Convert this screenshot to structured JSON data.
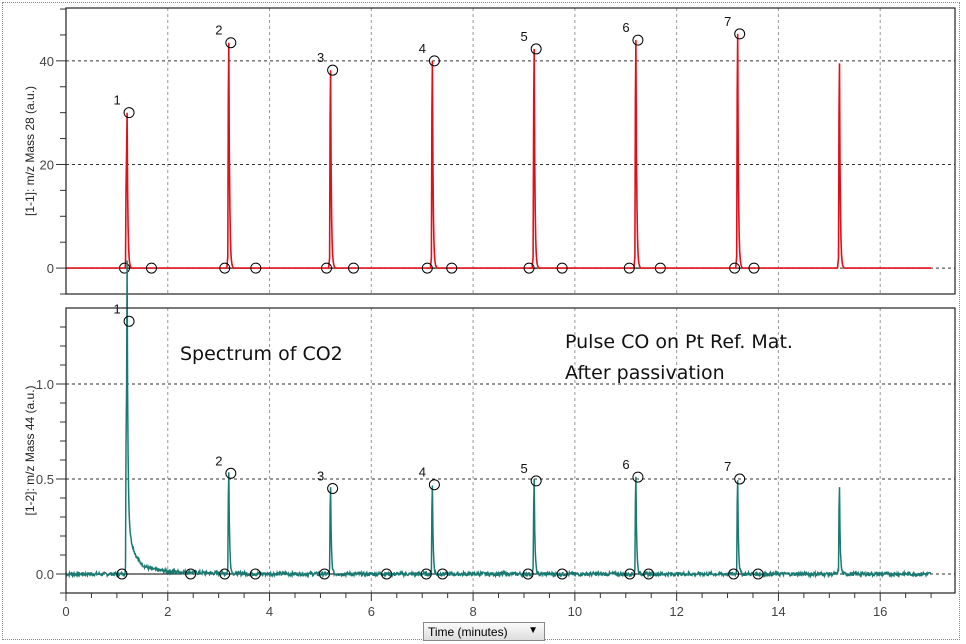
{
  "chart_data": [
    {
      "type": "line",
      "title": "",
      "xlabel": "Time (minutes)",
      "ylabel": "[1-1]: m/z Mass 28 (a.u.)",
      "xlim": [
        0,
        17.47
      ],
      "ylim": [
        -5,
        50.2
      ],
      "xticks": [
        0,
        2,
        4,
        6,
        8,
        10,
        12,
        14,
        16
      ],
      "yticks": [
        0,
        20,
        40
      ],
      "grid": true,
      "color": "#e0101a",
      "peaks": [
        {
          "label": "1",
          "time": 1.2,
          "value": 30.0
        },
        {
          "label": "2",
          "time": 3.2,
          "value": 43.5
        },
        {
          "label": "3",
          "time": 5.2,
          "value": 38.2
        },
        {
          "label": "4",
          "time": 7.2,
          "value": 40.0
        },
        {
          "label": "5",
          "time": 9.2,
          "value": 42.3
        },
        {
          "label": "6",
          "time": 11.2,
          "value": 44.0
        },
        {
          "label": "7",
          "time": 13.2,
          "value": 45.2
        },
        {
          "label": "",
          "time": 15.2,
          "value": 39.5
        }
      ],
      "baseline_markers": [
        [
          1.15,
          1.68
        ],
        [
          3.12,
          3.73
        ],
        [
          5.12,
          5.65
        ],
        [
          7.1,
          7.58
        ],
        [
          9.1,
          9.75
        ],
        [
          11.07,
          11.68
        ],
        [
          13.14,
          13.52
        ]
      ],
      "x_end": 17.0
    },
    {
      "type": "line",
      "title": "",
      "xlabel": "Time (minutes)",
      "ylabel": "[1-2]: m/z Mass 44 (a.u.)",
      "xlim": [
        0,
        17.47
      ],
      "ylim": [
        -0.1,
        1.4
      ],
      "xticks": [
        0,
        2,
        4,
        6,
        8,
        10,
        12,
        14,
        16
      ],
      "yticks": [
        "0.0",
        "0.5",
        "1.0"
      ],
      "grid": true,
      "color": "#1a7a72",
      "peaks": [
        {
          "label": "1",
          "time": 1.2,
          "value": 1.33
        },
        {
          "label": "2",
          "time": 3.2,
          "value": 0.53
        },
        {
          "label": "3",
          "time": 5.2,
          "value": 0.45
        },
        {
          "label": "4",
          "time": 7.2,
          "value": 0.47
        },
        {
          "label": "5",
          "time": 9.2,
          "value": 0.49
        },
        {
          "label": "6",
          "time": 11.2,
          "value": 0.51
        },
        {
          "label": "7",
          "time": 13.2,
          "value": 0.5
        },
        {
          "label": "",
          "time": 15.2,
          "value": 0.45
        }
      ],
      "baseline_markers": [
        [
          1.1,
          2.45
        ],
        [
          3.12,
          3.72
        ],
        [
          5.08,
          6.3
        ],
        [
          7.08,
          7.4
        ],
        [
          9.08,
          9.75
        ],
        [
          11.08,
          11.45
        ],
        [
          13.12,
          13.6
        ]
      ],
      "x_end": 17.0,
      "annotations": [
        "Spectrum of CO2",
        "Pulse CO on Pt Ref. Mat.",
        "After passivation"
      ]
    }
  ],
  "x_selector": {
    "label": "Time (minutes)",
    "arrow": "▼"
  }
}
